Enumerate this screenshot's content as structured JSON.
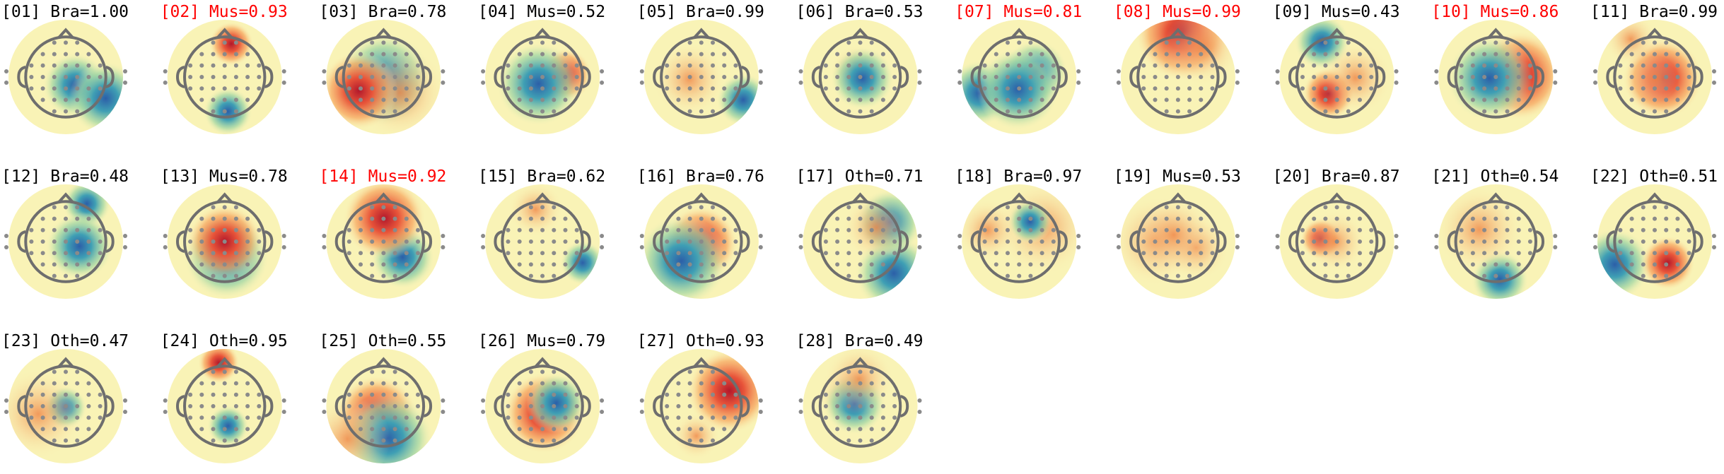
{
  "components": [
    {
      "label": "[01] Bra=1.00",
      "color": "#000000"
    },
    {
      "label": "[02] Mus=0.93",
      "color": "#ff0000"
    },
    {
      "label": "[03] Bra=0.78",
      "color": "#000000"
    },
    {
      "label": "[04] Mus=0.52",
      "color": "#000000"
    },
    {
      "label": "[05] Bra=0.99",
      "color": "#000000"
    },
    {
      "label": "[06] Bra=0.53",
      "color": "#000000"
    },
    {
      "label": "[07] Mus=0.81",
      "color": "#ff0000"
    },
    {
      "label": "[08] Mus=0.99",
      "color": "#ff0000"
    },
    {
      "label": "[09] Mus=0.43",
      "color": "#000000"
    },
    {
      "label": "[10] Mus=0.86",
      "color": "#ff0000"
    },
    {
      "label": "[11] Bra=0.99",
      "color": "#000000"
    },
    {
      "label": "[12] Bra=0.48",
      "color": "#000000"
    },
    {
      "label": "[13] Mus=0.78",
      "color": "#000000"
    },
    {
      "label": "[14] Mus=0.92",
      "color": "#ff0000"
    },
    {
      "label": "[15] Bra=0.62",
      "color": "#000000"
    },
    {
      "label": "[16] Bra=0.76",
      "color": "#000000"
    },
    {
      "label": "[17] Oth=0.71",
      "color": "#000000"
    },
    {
      "label": "[18] Bra=0.97",
      "color": "#000000"
    },
    {
      "label": "[19] Mus=0.53",
      "color": "#000000"
    },
    {
      "label": "[20] Bra=0.87",
      "color": "#000000"
    },
    {
      "label": "[21] Oth=0.54",
      "color": "#000000"
    },
    {
      "label": "[22] Oth=0.51",
      "color": "#000000"
    },
    {
      "label": "[23] Oth=0.47",
      "color": "#000000"
    },
    {
      "label": "[24] Oth=0.95",
      "color": "#000000"
    },
    {
      "label": "[25] Oth=0.55",
      "color": "#000000"
    },
    {
      "label": "[26] Mus=0.79",
      "color": "#000000"
    },
    {
      "label": "[27] Oth=0.93",
      "color": "#000000"
    },
    {
      "label": "[28] Bra=0.49",
      "color": "#000000"
    }
  ]
}
